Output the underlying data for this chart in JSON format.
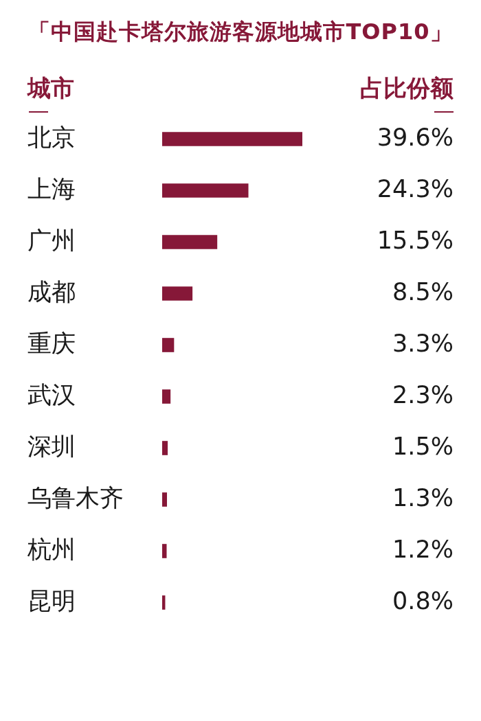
{
  "chart_data": {
    "type": "bar",
    "title": "「中国赴卡塔尔旅游客源地城市TOP10」",
    "ylabel": "城市",
    "xlabel": "占比份额",
    "orientation": "horizontal",
    "categories": [
      "北京",
      "上海",
      "广州",
      "成都",
      "重庆",
      "武汉",
      "深圳",
      "乌鲁木齐",
      "杭州",
      "昆明"
    ],
    "values": [
      39.6,
      24.3,
      15.5,
      8.5,
      3.3,
      2.3,
      1.5,
      1.3,
      1.2,
      0.8
    ],
    "value_labels": [
      "39.6%",
      "24.3%",
      "15.5%",
      "8.5%",
      "3.3%",
      "2.3%",
      "1.5%",
      "1.3%",
      "1.2%",
      "0.8%"
    ],
    "color": "#861838",
    "grid": false,
    "legend": false
  }
}
